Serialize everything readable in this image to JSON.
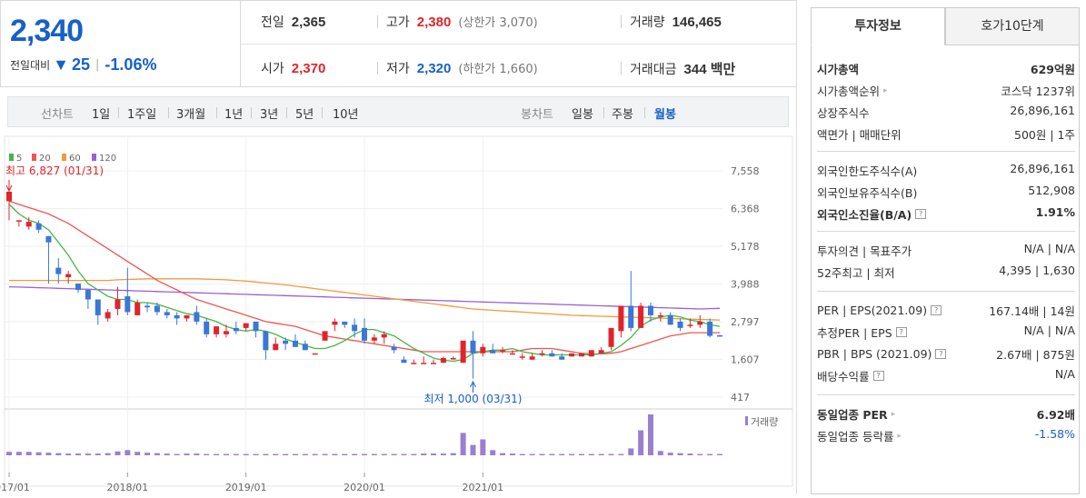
{
  "summary": {
    "price": "2,340",
    "change_label": "전일대비",
    "change_icon": "down-triangle-icon",
    "change_arrow": "▼",
    "change": "25",
    "change_pct": "-1.06%"
  },
  "info": {
    "prev_close": {
      "label": "전일",
      "value": "2,365"
    },
    "high": {
      "label": "고가",
      "value": "2,380",
      "sub": "(상한가 3,070)"
    },
    "volume": {
      "label": "거래량",
      "value": "146,465"
    },
    "open": {
      "label": "시가",
      "value": "2,370"
    },
    "low": {
      "label": "저가",
      "value": "2,320",
      "sub": "(하한가 1,660)"
    },
    "amount": {
      "label": "거래대금",
      "value": "344 백만"
    }
  },
  "period_bar": {
    "line_label": "선차트",
    "line_items": [
      "1일",
      "1주일",
      "3개월",
      "1년",
      "3년",
      "5년",
      "10년"
    ],
    "candle_label": "봉차트",
    "candle_items": [
      "일봉",
      "주봉",
      "월봉"
    ],
    "candle_active": "월봉"
  },
  "chart_data": {
    "type": "candlestick",
    "ma_legend": [
      {
        "name": "5",
        "color": "#45b649"
      },
      {
        "name": "20",
        "color": "#f0554f"
      },
      {
        "name": "60",
        "color": "#f29b3c"
      },
      {
        "name": "120",
        "color": "#9a5fd6"
      }
    ],
    "y_ticks": [
      7558,
      6368,
      5178,
      3988,
      2797,
      1607,
      417
    ],
    "x_labels": [
      "2017/01",
      "2018/01",
      "2019/01",
      "2020/01",
      "2021/01"
    ],
    "max_label": "최고 6,827 (01/31)",
    "min_label": "최저 1,000 (03/31)",
    "volume_legend": "거래량",
    "colors": {
      "up": "#e0242c",
      "down": "#3b77d6"
    },
    "candles": [
      [
        6600,
        7000,
        6900,
        6000
      ],
      [
        6000,
        6000,
        6000,
        5800
      ],
      [
        5800,
        6100,
        5950,
        5700
      ],
      [
        5900,
        6000,
        5700,
        5600
      ],
      [
        5500,
        5500,
        5300,
        4000
      ],
      [
        4500,
        4800,
        4300,
        4000
      ],
      [
        4200,
        4400,
        4300,
        4000
      ],
      [
        4000,
        4000,
        3800,
        3700
      ],
      [
        3800,
        3800,
        3500,
        3200
      ],
      [
        3500,
        3500,
        3000,
        2700
      ],
      [
        2900,
        3200,
        3100,
        2800
      ],
      [
        3200,
        3900,
        3500,
        3000
      ],
      [
        3600,
        4500,
        3100,
        3000
      ],
      [
        3000,
        3500,
        3400,
        3000
      ],
      [
        3300,
        3400,
        3250,
        3100
      ],
      [
        3300,
        3400,
        3100,
        3000
      ],
      [
        3100,
        3200,
        3000,
        2900
      ],
      [
        3000,
        3100,
        2900,
        2700
      ],
      [
        2900,
        3000,
        3000,
        2800
      ],
      [
        3100,
        3300,
        2800,
        2700
      ],
      [
        2800,
        2900,
        2400,
        2300
      ],
      [
        2400,
        2500,
        2650,
        2300
      ],
      [
        2400,
        2700,
        2500,
        2300
      ],
      [
        2600,
        2800,
        2500,
        2400
      ],
      [
        2600,
        2700,
        2750,
        2500
      ],
      [
        2800,
        2800,
        2500,
        2300
      ],
      [
        2500,
        2500,
        1900,
        1600
      ],
      [
        1900,
        2300,
        2100,
        1900
      ],
      [
        2200,
        2300,
        2100,
        1900
      ],
      [
        2200,
        2400,
        2000,
        2000
      ],
      [
        2100,
        2200,
        1900,
        1900
      ],
      [
        1800,
        1800,
        1800,
        1800
      ],
      [
        2200,
        2400,
        2500,
        2200
      ],
      [
        2700,
        2900,
        2800,
        2500
      ],
      [
        2800,
        2800,
        2700,
        2600
      ],
      [
        2700,
        2900,
        2500,
        2300
      ],
      [
        2600,
        2900,
        2200,
        2100
      ],
      [
        2200,
        2400,
        2300,
        2100
      ],
      [
        2300,
        2500,
        2400,
        2100
      ],
      [
        2000,
        2100,
        1900,
        1800
      ],
      [
        1600,
        1700,
        1500,
        1500
      ],
      [
        1500,
        1600,
        1500,
        1500
      ],
      [
        1500,
        1700,
        1500,
        1500
      ],
      [
        1500,
        1600,
        1500,
        1500
      ],
      [
        1500,
        1700,
        1650,
        1500
      ],
      [
        1650,
        1700,
        1650,
        1600
      ],
      [
        1500,
        1800,
        2200,
        1500
      ],
      [
        2200,
        2500,
        1800,
        1000
      ],
      [
        1800,
        2100,
        2000,
        1700
      ],
      [
        1900,
        2100,
        1800,
        1800
      ],
      [
        1900,
        2000,
        1900,
        1800
      ],
      [
        1800,
        1900,
        1800,
        1800
      ],
      [
        1700,
        1800,
        1700,
        1600
      ],
      [
        1600,
        1800,
        1700,
        1600
      ],
      [
        1800,
        1900,
        1800,
        1700
      ],
      [
        1800,
        1900,
        1700,
        1700
      ],
      [
        1700,
        1800,
        1600,
        1600
      ],
      [
        1700,
        1800,
        1800,
        1700
      ],
      [
        1700,
        1800,
        1800,
        1700
      ],
      [
        1700,
        1800,
        1900,
        1700
      ],
      [
        1800,
        2000,
        1900,
        1800
      ],
      [
        2000,
        2400,
        2600,
        1900
      ],
      [
        2500,
        3200,
        3300,
        2300
      ],
      [
        3300,
        4400,
        2600,
        2500
      ],
      [
        2600,
        3400,
        3300,
        2600
      ],
      [
        3300,
        3400,
        3000,
        2800
      ],
      [
        3000,
        3100,
        3000,
        2800
      ],
      [
        3000,
        3100,
        2700,
        2700
      ],
      [
        2800,
        2900,
        2600,
        2500
      ],
      [
        2700,
        2900,
        2700,
        2600
      ],
      [
        2700,
        3000,
        2800,
        2600
      ],
      [
        2800,
        2900,
        2350,
        2300
      ],
      [
        2370,
        2380,
        2340,
        2320
      ]
    ],
    "ma5": [
      6500,
      6200,
      6000,
      5900,
      5700,
      5300,
      4900,
      4400,
      4000,
      3800,
      3600,
      3500,
      3500,
      3400,
      3400,
      3350,
      3250,
      3150,
      3050,
      3000,
      2900,
      2800,
      2650,
      2550,
      2500,
      2550,
      2500,
      2400,
      2250,
      2150,
      2050,
      1950,
      1950,
      2050,
      2200,
      2400,
      2550,
      2550,
      2450,
      2350,
      2150,
      1950,
      1800,
      1650,
      1580,
      1550,
      1600,
      1800,
      1850,
      1900,
      1900,
      1950,
      1850,
      1800,
      1750,
      1750,
      1750,
      1750,
      1750,
      1750,
      1800,
      1850,
      2050,
      2300,
      2650,
      2850,
      2950,
      3000,
      2950,
      2850,
      2800,
      2700,
      2650
    ],
    "ma20": [
      6600,
      6500,
      6400,
      6300,
      6200,
      6050,
      5900,
      5700,
      5500,
      5300,
      5100,
      4900,
      4700,
      4500,
      4300,
      4100,
      3950,
      3800,
      3650,
      3500,
      3400,
      3300,
      3200,
      3100,
      3000,
      2900,
      2800,
      2750,
      2700,
      2650,
      2550,
      2450,
      2350,
      2300,
      2250,
      2200,
      2150,
      2100,
      2050,
      2000,
      1950,
      1900,
      1850,
      1850,
      1850,
      1850,
      1850,
      1850,
      1850,
      1850,
      1850,
      1850,
      1900,
      1950,
      1950,
      1950,
      1900,
      1850,
      1800,
      1780,
      1780,
      1800,
      1850,
      1950,
      2050,
      2150,
      2250,
      2350,
      2400,
      2450,
      2450,
      2450,
      2450
    ],
    "ma60": [
      4100,
      4100,
      4100,
      4100,
      4100,
      4100,
      4100,
      4100,
      4100,
      4100,
      4100,
      4120,
      4130,
      4140,
      4150,
      4150,
      4150,
      4150,
      4150,
      4150,
      4140,
      4130,
      4120,
      4100,
      4080,
      4050,
      4020,
      3990,
      3960,
      3920,
      3880,
      3840,
      3800,
      3760,
      3720,
      3680,
      3640,
      3600,
      3560,
      3520,
      3480,
      3440,
      3400,
      3360,
      3320,
      3280,
      3240,
      3200,
      3180,
      3160,
      3140,
      3120,
      3100,
      3080,
      3060,
      3040,
      3020,
      3000,
      2990,
      2980,
      2970,
      2960,
      2950,
      2940,
      2930,
      2920,
      2910,
      2900,
      2890,
      2880,
      2870,
      2860,
      2850
    ],
    "ma120": [
      3900,
      3890,
      3880,
      3870,
      3860,
      3850,
      3840,
      3830,
      3820,
      3810,
      3800,
      3790,
      3780,
      3770,
      3760,
      3750,
      3740,
      3730,
      3720,
      3710,
      3700,
      3690,
      3680,
      3670,
      3660,
      3650,
      3640,
      3630,
      3620,
      3610,
      3600,
      3590,
      3580,
      3570,
      3560,
      3550,
      3540,
      3530,
      3520,
      3510,
      3500,
      3490,
      3480,
      3470,
      3460,
      3450,
      3440,
      3430,
      3420,
      3410,
      3400,
      3390,
      3380,
      3370,
      3360,
      3350,
      3340,
      3330,
      3320,
      3310,
      3300,
      3290,
      3280,
      3270,
      3260,
      3250,
      3240,
      3230,
      3220,
      3210,
      3200,
      3210,
      3220
    ],
    "volume": [
      8,
      8,
      8,
      7,
      6,
      5,
      4,
      4,
      4,
      4,
      5,
      9,
      12,
      8,
      6,
      5,
      4,
      3,
      4,
      4,
      3,
      3,
      3,
      3,
      3,
      3,
      3,
      3,
      3,
      3,
      3,
      3,
      3,
      3,
      3,
      3,
      3,
      3,
      3,
      3,
      3,
      3,
      4,
      4,
      4,
      5,
      52,
      24,
      37,
      12,
      5,
      4,
      3,
      3,
      3,
      3,
      3,
      3,
      3,
      3,
      3,
      3,
      3,
      16,
      58,
      95,
      10,
      6,
      5,
      4,
      3,
      3,
      3
    ]
  },
  "sidebar": {
    "tabs": [
      "투자정보",
      "호가10단계"
    ],
    "rows": [
      {
        "k": "시가총액",
        "v": "629억원",
        "bold": true
      },
      {
        "k": "시가총액순위",
        "v": "코스닥 1237위",
        "tri": "▸"
      },
      {
        "k": "상장주식수",
        "v": "26,896,161"
      },
      {
        "k": "액면가 | 매매단위",
        "v": "500원 | 1주"
      },
      {
        "k": "외국인한도주식수(A)",
        "v": "26,896,161"
      },
      {
        "k": "외국인보유주식수(B)",
        "v": "512,908"
      },
      {
        "k": "외국인소진율(B/A)",
        "v": "1.91%",
        "bold": true,
        "q": "?"
      },
      {
        "k": "투자의견 | 목표주가",
        "v": "N/A | N/A"
      },
      {
        "k": "52주최고 | 최저",
        "v": "4,395 | 1,630"
      },
      {
        "k": "PER | EPS(2021.09)",
        "v": "167.14배 | 14원",
        "q": "?"
      },
      {
        "k": "추정PER | EPS",
        "v": "N/A | N/A",
        "q": "?"
      },
      {
        "k": "PBR | BPS (2021.09)",
        "v": "2.67배 | 875원",
        "q": "?"
      },
      {
        "k": "배당수익률",
        "v": "N/A",
        "q": "?"
      },
      {
        "k": "동일업종 PER",
        "v": "6.92배",
        "bold": true,
        "tri": "▸"
      },
      {
        "k": "동일업종 등락률",
        "v": "-1.58%",
        "tri": "▸",
        "neg": true
      }
    ]
  }
}
